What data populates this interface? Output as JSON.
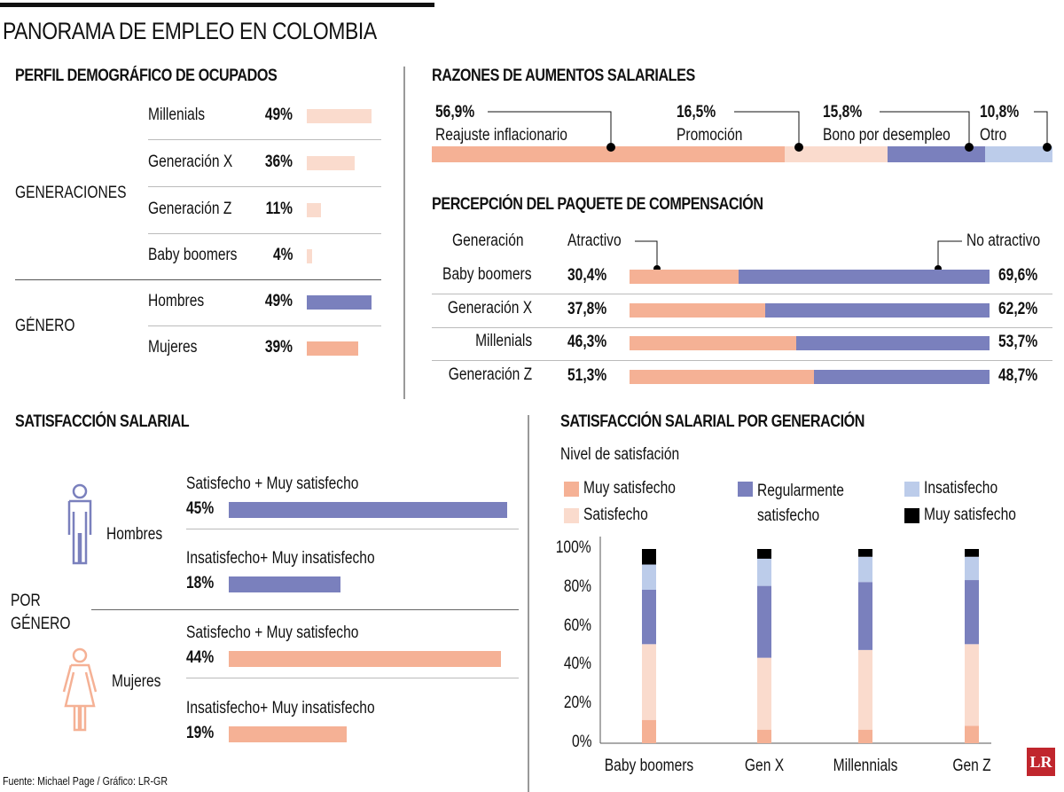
{
  "title": "PANORAMA DE EMPLEO EN COLOMBIA",
  "colors": {
    "salmon": "#F5B195",
    "light_salmon": "#FADBCD",
    "blue": "#7A80BD",
    "light_blue": "#BCCCEA",
    "black": "#000000"
  },
  "perfil": {
    "title": "PERFIL DEMOGRÁFICO DE OCUPADOS",
    "group1": "GENERACIONES",
    "group2": "GÉNERO",
    "rows": [
      {
        "label": "Millenials",
        "value": 49,
        "text": "49%",
        "color": "#FADBCD"
      },
      {
        "label": "Generación X",
        "value": 36,
        "text": "36%",
        "color": "#FADBCD"
      },
      {
        "label": "Generación Z",
        "value": 11,
        "text": "11%",
        "color": "#FADBCD"
      },
      {
        "label": "Baby boomers",
        "value": 4,
        "text": "4%",
        "color": "#FADBCD"
      },
      {
        "label": "Hombres",
        "value": 49,
        "text": "49%",
        "color": "#7A80BD"
      },
      {
        "label": "Mujeres",
        "value": 39,
        "text": "39%",
        "color": "#F5B195"
      }
    ]
  },
  "razones": {
    "title": "RAZONES DE AUMENTOS SALARIALES",
    "items": [
      {
        "label": "Reajuste inflacionario",
        "value": 56.9,
        "text": "56,9%",
        "color": "#F5B195"
      },
      {
        "label": "Promoción",
        "value": 16.5,
        "text": "16,5%",
        "color": "#FADBCD"
      },
      {
        "label": "Bono por desempleo",
        "value": 15.8,
        "text": "15,8%",
        "color": "#7A80BD"
      },
      {
        "label": "Otro",
        "value": 10.8,
        "text": "10,8%",
        "color": "#BCCCEA"
      }
    ]
  },
  "percepcion": {
    "title": "PERCEPCIÓN DEL PAQUETE DE COMPENSACIÓN",
    "col_gen": "Generación",
    "col_a": "Atractivo",
    "col_n": "No atractivo",
    "rows": [
      {
        "label": "Baby boomers",
        "a": 30.4,
        "a_text": "30,4%",
        "n_text": "69,6%"
      },
      {
        "label": "Generación X",
        "a": 37.8,
        "a_text": "37,8%",
        "n_text": "62,2%"
      },
      {
        "label": "Millenials",
        "a": 46.3,
        "a_text": "46,3%",
        "n_text": "53,7%"
      },
      {
        "label": "Generación Z",
        "a": 51.3,
        "a_text": "51,3%",
        "n_text": "48,7%"
      }
    ]
  },
  "satisfaccion": {
    "title": "SATISFACCIÓN SALARIAL",
    "group": "POR GÉNERO",
    "men": "Hombres",
    "women": "Mujeres",
    "rows": [
      {
        "label": "Satisfecho + Muy satisfecho",
        "value": 45,
        "text": "45%",
        "color": "#7A80BD"
      },
      {
        "label": "Insatisfecho+ Muy insatisfecho",
        "value": 18,
        "text": "18%",
        "color": "#7A80BD"
      },
      {
        "label": "Satisfecho + Muy satisfecho",
        "value": 44,
        "text": "44%",
        "color": "#F5B195"
      },
      {
        "label": "Insatisfecho+ Muy insatisfecho",
        "value": 19,
        "text": "19%",
        "color": "#F5B195"
      }
    ]
  },
  "chart_data": {
    "type": "bar",
    "stacked": true,
    "title": "SATISFACCIÓN SALARIAL POR GENERACIÓN",
    "subtitle": "Nivel de satisfación",
    "categories": [
      "Baby boomers",
      "Gen X",
      "Millennials",
      "Gen Z"
    ],
    "yticks": [
      "0%",
      "20%",
      "40%",
      "60%",
      "80%",
      "100%"
    ],
    "ylim": [
      0,
      100
    ],
    "series": [
      {
        "name": "Muy satisfecho",
        "color": "#F5B195",
        "values": [
          12,
          7,
          7,
          9
        ]
      },
      {
        "name": "Satisfecho",
        "color": "#FADBCD",
        "values": [
          39,
          37,
          41,
          42
        ]
      },
      {
        "name": "Regularmente satisfecho",
        "color": "#7A80BD",
        "values": [
          28,
          37,
          35,
          33
        ]
      },
      {
        "name": "Insatisfecho",
        "color": "#BCCCEA",
        "values": [
          13,
          14,
          13,
          12
        ]
      },
      {
        "name": "Muy satisfecho",
        "color": "#000000",
        "values": [
          8,
          5,
          4,
          4
        ]
      }
    ],
    "legend": [
      {
        "name": "Muy satisfecho",
        "color": "#F5B195"
      },
      {
        "name": "Satisfecho",
        "color": "#FADBCD"
      },
      {
        "name": "Regularmente satisfecho",
        "color": "#7A80BD"
      },
      {
        "name": "Insatisfecho",
        "color": "#BCCCEA"
      },
      {
        "name": "Muy satisfecho",
        "color": "#000000"
      }
    ]
  },
  "footer": "Fuente: Michael Page / Gráfico: LR-GR",
  "logo": "LR"
}
